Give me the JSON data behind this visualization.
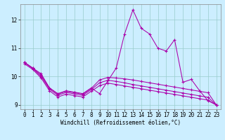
{
  "xlabel": "Windchill (Refroidissement éolien,°C)",
  "x_values": [
    0,
    1,
    2,
    3,
    4,
    5,
    6,
    7,
    8,
    9,
    10,
    11,
    12,
    13,
    14,
    15,
    16,
    17,
    18,
    19,
    20,
    21,
    22,
    23
  ],
  "line1": [
    10.5,
    10.3,
    10.1,
    9.6,
    9.4,
    9.5,
    9.45,
    9.4,
    9.6,
    9.4,
    9.85,
    10.3,
    11.5,
    12.35,
    11.7,
    11.5,
    11.0,
    10.9,
    11.3,
    9.8,
    9.9,
    9.5,
    9.15,
    9.0
  ],
  "line2": [
    10.5,
    10.3,
    10.05,
    9.6,
    9.38,
    9.48,
    9.43,
    9.38,
    9.58,
    9.88,
    9.97,
    9.95,
    9.92,
    9.88,
    9.83,
    9.78,
    9.73,
    9.68,
    9.63,
    9.58,
    9.53,
    9.48,
    9.43,
    9.0
  ],
  "line3": [
    10.5,
    10.28,
    10.0,
    9.56,
    9.34,
    9.44,
    9.39,
    9.34,
    9.54,
    9.78,
    9.87,
    9.83,
    9.78,
    9.72,
    9.67,
    9.62,
    9.57,
    9.52,
    9.47,
    9.42,
    9.37,
    9.32,
    9.27,
    9.0
  ],
  "line4": [
    10.45,
    10.25,
    9.95,
    9.5,
    9.28,
    9.38,
    9.33,
    9.28,
    9.48,
    9.68,
    9.77,
    9.72,
    9.67,
    9.62,
    9.57,
    9.52,
    9.47,
    9.42,
    9.37,
    9.32,
    9.27,
    9.22,
    9.17,
    9.0
  ],
  "color": "#aa00aa",
  "bg_color": "#cceeff",
  "grid_color": "#99cccc",
  "ylim": [
    8.85,
    12.55
  ],
  "yticks": [
    9,
    10,
    11,
    12
  ],
  "xticks": [
    0,
    1,
    2,
    3,
    4,
    5,
    6,
    7,
    8,
    9,
    10,
    11,
    12,
    13,
    14,
    15,
    16,
    17,
    18,
    19,
    20,
    21,
    22,
    23
  ],
  "tick_fontsize": 5.5,
  "xlabel_fontsize": 5.5
}
